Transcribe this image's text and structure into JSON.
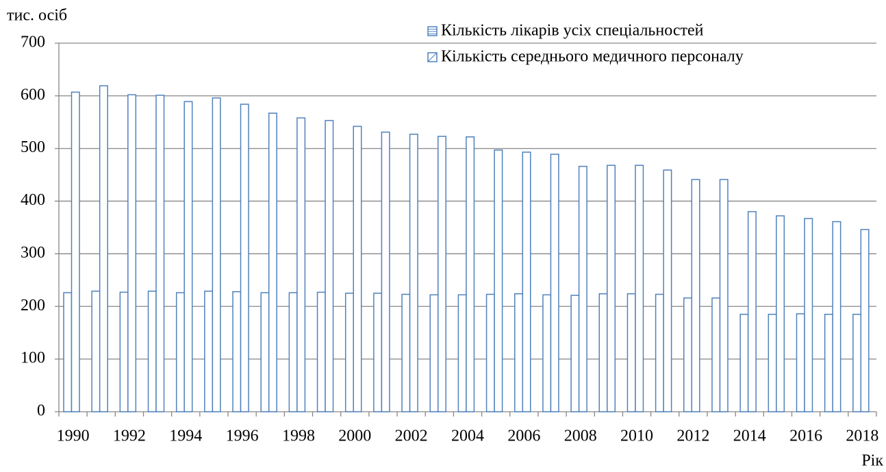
{
  "chart_data": {
    "type": "bar",
    "y_label": "тис. осіб",
    "x_label": "Рік",
    "categories": [
      1990,
      null,
      1992,
      null,
      1994,
      null,
      1996,
      null,
      1998,
      null,
      2000,
      null,
      2002,
      null,
      2004,
      null,
      2006,
      null,
      2008,
      null,
      2010,
      null,
      2012,
      null,
      2014,
      null,
      2016,
      null,
      2018
    ],
    "series": [
      {
        "name": "Кількість лікарів усіх спеціальностей",
        "color": "#4f81bd",
        "values": [
          226,
          229,
          227,
          229,
          226,
          229,
          228,
          226,
          226,
          227,
          225,
          225,
          223,
          222,
          222,
          223,
          224,
          222,
          221,
          224,
          224,
          223,
          216,
          216,
          185,
          185,
          186,
          185,
          185
        ]
      },
      {
        "name": "Кількість середнього медичного персоналу",
        "color": "#4f81bd",
        "values": [
          607,
          619,
          602,
          601,
          589,
          596,
          584,
          567,
          558,
          553,
          542,
          531,
          527,
          523,
          522,
          497,
          493,
          489,
          466,
          468,
          468,
          459,
          441,
          441,
          380,
          372,
          367,
          361,
          346
        ]
      }
    ],
    "ylim": [
      0,
      700
    ],
    "yticks": [
      0,
      100,
      200,
      300,
      400,
      500,
      600,
      700
    ],
    "grid": true,
    "legend": "top-right"
  }
}
